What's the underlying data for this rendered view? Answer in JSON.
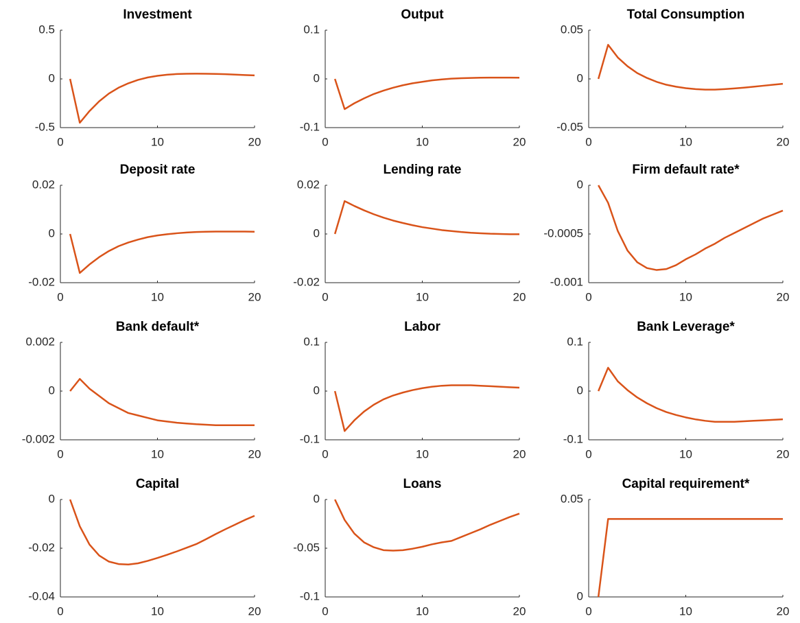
{
  "chart_data": [
    {
      "type": "line",
      "title": "Investment",
      "x": [
        1,
        2,
        3,
        4,
        5,
        6,
        7,
        8,
        9,
        10,
        11,
        12,
        13,
        14,
        15,
        16,
        17,
        18,
        19,
        20
      ],
      "values": [
        0,
        -0.45,
        -0.33,
        -0.23,
        -0.15,
        -0.09,
        -0.045,
        -0.01,
        0.015,
        0.032,
        0.043,
        0.05,
        0.053,
        0.054,
        0.053,
        0.051,
        0.048,
        0.044,
        0.04,
        0.036
      ],
      "color": "#d95319",
      "xlim": [
        0,
        20
      ],
      "xticks": [
        0,
        10,
        20
      ],
      "ylim": [
        -0.5,
        0.5
      ],
      "yticks": [
        -0.5,
        0,
        0.5
      ]
    },
    {
      "type": "line",
      "title": "Output",
      "x": [
        1,
        2,
        3,
        4,
        5,
        6,
        7,
        8,
        9,
        10,
        11,
        12,
        13,
        14,
        15,
        16,
        17,
        18,
        19,
        20
      ],
      "values": [
        0,
        -0.062,
        -0.05,
        -0.04,
        -0.031,
        -0.024,
        -0.018,
        -0.013,
        -0.009,
        -0.006,
        -0.003,
        -0.001,
        0.0005,
        0.0015,
        0.002,
        0.0025,
        0.0027,
        0.0027,
        0.0026,
        0.0025
      ],
      "color": "#d95319",
      "xlim": [
        0,
        20
      ],
      "xticks": [
        0,
        10,
        20
      ],
      "ylim": [
        -0.1,
        0.1
      ],
      "yticks": [
        -0.1,
        0,
        0.1
      ]
    },
    {
      "type": "line",
      "title": "Total Consumption",
      "x": [
        1,
        2,
        3,
        4,
        5,
        6,
        7,
        8,
        9,
        10,
        11,
        12,
        13,
        14,
        15,
        16,
        17,
        18,
        19,
        20
      ],
      "values": [
        0,
        0.035,
        0.022,
        0.013,
        0.006,
        0.001,
        -0.003,
        -0.006,
        -0.008,
        -0.0095,
        -0.0105,
        -0.011,
        -0.011,
        -0.0105,
        -0.0098,
        -0.009,
        -0.008,
        -0.007,
        -0.006,
        -0.005
      ],
      "color": "#d95319",
      "xlim": [
        0,
        20
      ],
      "xticks": [
        0,
        10,
        20
      ],
      "ylim": [
        -0.05,
        0.05
      ],
      "yticks": [
        -0.05,
        0,
        0.05
      ]
    },
    {
      "type": "line",
      "title": "Deposit rate",
      "x": [
        1,
        2,
        3,
        4,
        5,
        6,
        7,
        8,
        9,
        10,
        11,
        12,
        13,
        14,
        15,
        16,
        17,
        18,
        19,
        20
      ],
      "values": [
        0,
        -0.016,
        -0.0125,
        -0.0095,
        -0.007,
        -0.005,
        -0.0035,
        -0.0023,
        -0.0013,
        -0.0006,
        -0.0001,
        0.0003,
        0.0006,
        0.0008,
        0.0009,
        0.001,
        0.001,
        0.001,
        0.001,
        0.0009
      ],
      "color": "#d95319",
      "xlim": [
        0,
        20
      ],
      "xticks": [
        0,
        10,
        20
      ],
      "ylim": [
        -0.02,
        0.02
      ],
      "yticks": [
        -0.02,
        0,
        0.02
      ]
    },
    {
      "type": "line",
      "title": "Lending rate",
      "x": [
        1,
        2,
        3,
        4,
        5,
        6,
        7,
        8,
        9,
        10,
        11,
        12,
        13,
        14,
        15,
        16,
        17,
        18,
        19,
        20
      ],
      "values": [
        0,
        0.0135,
        0.0115,
        0.0097,
        0.0081,
        0.0067,
        0.0055,
        0.0045,
        0.0036,
        0.0028,
        0.0022,
        0.0016,
        0.0012,
        0.0008,
        0.0005,
        0.0003,
        0.0001,
        0,
        -0.0001,
        -0.0001
      ],
      "color": "#d95319",
      "xlim": [
        0,
        20
      ],
      "xticks": [
        0,
        10,
        20
      ],
      "ylim": [
        -0.02,
        0.02
      ],
      "yticks": [
        -0.02,
        0,
        0.02
      ]
    },
    {
      "type": "line",
      "title": "Firm default rate*",
      "x": [
        1,
        2,
        3,
        4,
        5,
        6,
        7,
        8,
        9,
        10,
        11,
        12,
        13,
        14,
        15,
        16,
        17,
        18,
        19,
        20
      ],
      "values": [
        0,
        -0.00018,
        -0.00047,
        -0.00067,
        -0.00079,
        -0.00085,
        -0.00087,
        -0.00086,
        -0.00082,
        -0.00076,
        -0.00071,
        -0.00065,
        -0.0006,
        -0.00054,
        -0.00049,
        -0.00044,
        -0.00039,
        -0.00034,
        -0.0003,
        -0.00026
      ],
      "color": "#d95319",
      "xlim": [
        0,
        20
      ],
      "xticks": [
        0,
        10,
        20
      ],
      "ylim": [
        -0.001,
        0
      ],
      "yticks": [
        -0.001,
        -0.0005,
        0
      ]
    },
    {
      "type": "line",
      "title": "Bank default*",
      "x": [
        1,
        2,
        3,
        4,
        5,
        6,
        7,
        8,
        9,
        10,
        11,
        12,
        13,
        14,
        15,
        16,
        17,
        18,
        19,
        20
      ],
      "values": [
        0,
        0.0005,
        0.0001,
        -0.0002,
        -0.0005,
        -0.0007,
        -0.0009,
        -0.001,
        -0.0011,
        -0.0012,
        -0.00125,
        -0.0013,
        -0.00133,
        -0.00136,
        -0.00138,
        -0.0014,
        -0.0014,
        -0.0014,
        -0.0014,
        -0.0014
      ],
      "color": "#d95319",
      "xlim": [
        0,
        20
      ],
      "xticks": [
        0,
        10,
        20
      ],
      "ylim": [
        -0.002,
        0.002
      ],
      "yticks": [
        -0.002,
        0,
        0.002
      ]
    },
    {
      "type": "line",
      "title": "Labor",
      "x": [
        1,
        2,
        3,
        4,
        5,
        6,
        7,
        8,
        9,
        10,
        11,
        12,
        13,
        14,
        15,
        16,
        17,
        18,
        19,
        20
      ],
      "values": [
        0,
        -0.082,
        -0.06,
        -0.042,
        -0.028,
        -0.017,
        -0.009,
        -0.003,
        0.002,
        0.006,
        0.009,
        0.011,
        0.012,
        0.012,
        0.012,
        0.011,
        0.01,
        0.009,
        0.008,
        0.007
      ],
      "color": "#d95319",
      "xlim": [
        0,
        20
      ],
      "xticks": [
        0,
        10,
        20
      ],
      "ylim": [
        -0.1,
        0.1
      ],
      "yticks": [
        -0.1,
        0,
        0.1
      ]
    },
    {
      "type": "line",
      "title": "Bank Leverage*",
      "x": [
        1,
        2,
        3,
        4,
        5,
        6,
        7,
        8,
        9,
        10,
        11,
        12,
        13,
        14,
        15,
        16,
        17,
        18,
        19,
        20
      ],
      "values": [
        0,
        0.048,
        0.02,
        0.002,
        -0.013,
        -0.025,
        -0.035,
        -0.043,
        -0.049,
        -0.054,
        -0.058,
        -0.061,
        -0.063,
        -0.063,
        -0.063,
        -0.062,
        -0.061,
        -0.06,
        -0.059,
        -0.058
      ],
      "color": "#d95319",
      "xlim": [
        0,
        20
      ],
      "xticks": [
        0,
        10,
        20
      ],
      "ylim": [
        -0.1,
        0.1
      ],
      "yticks": [
        -0.1,
        0,
        0.1
      ]
    },
    {
      "type": "line",
      "title": "Capital",
      "x": [
        1,
        2,
        3,
        4,
        5,
        6,
        7,
        8,
        9,
        10,
        11,
        12,
        13,
        14,
        15,
        16,
        17,
        18,
        19,
        20
      ],
      "values": [
        0,
        -0.011,
        -0.0185,
        -0.023,
        -0.0255,
        -0.0265,
        -0.0267,
        -0.0262,
        -0.0252,
        -0.024,
        -0.0227,
        -0.0213,
        -0.0198,
        -0.0183,
        -0.0163,
        -0.0142,
        -0.0122,
        -0.0103,
        -0.0084,
        -0.0067
      ],
      "color": "#d95319",
      "xlim": [
        0,
        20
      ],
      "xticks": [
        0,
        10,
        20
      ],
      "ylim": [
        -0.04,
        0
      ],
      "yticks": [
        -0.04,
        -0.02,
        0
      ]
    },
    {
      "type": "line",
      "title": "Loans",
      "x": [
        1,
        2,
        3,
        4,
        5,
        6,
        7,
        8,
        9,
        10,
        11,
        12,
        13,
        14,
        15,
        16,
        17,
        18,
        19,
        20
      ],
      "values": [
        0,
        -0.021,
        -0.035,
        -0.044,
        -0.049,
        -0.052,
        -0.0525,
        -0.052,
        -0.0505,
        -0.0485,
        -0.046,
        -0.044,
        -0.0425,
        -0.0385,
        -0.0345,
        -0.0305,
        -0.026,
        -0.022,
        -0.018,
        -0.0145
      ],
      "color": "#d95319",
      "xlim": [
        0,
        20
      ],
      "xticks": [
        0,
        10,
        20
      ],
      "ylim": [
        -0.1,
        0
      ],
      "yticks": [
        -0.1,
        -0.05,
        0
      ]
    },
    {
      "type": "line",
      "title": "Capital requirement*",
      "x": [
        1,
        2,
        3,
        4,
        5,
        6,
        7,
        8,
        9,
        10,
        11,
        12,
        13,
        14,
        15,
        16,
        17,
        18,
        19,
        20
      ],
      "values": [
        0,
        0.04,
        0.04,
        0.04,
        0.04,
        0.04,
        0.04,
        0.04,
        0.04,
        0.04,
        0.04,
        0.04,
        0.04,
        0.04,
        0.04,
        0.04,
        0.04,
        0.04,
        0.04,
        0.04
      ],
      "color": "#d95319",
      "xlim": [
        0,
        20
      ],
      "xticks": [
        0,
        10,
        20
      ],
      "ylim": [
        0,
        0.05
      ],
      "yticks": [
        0,
        0.05
      ]
    }
  ]
}
